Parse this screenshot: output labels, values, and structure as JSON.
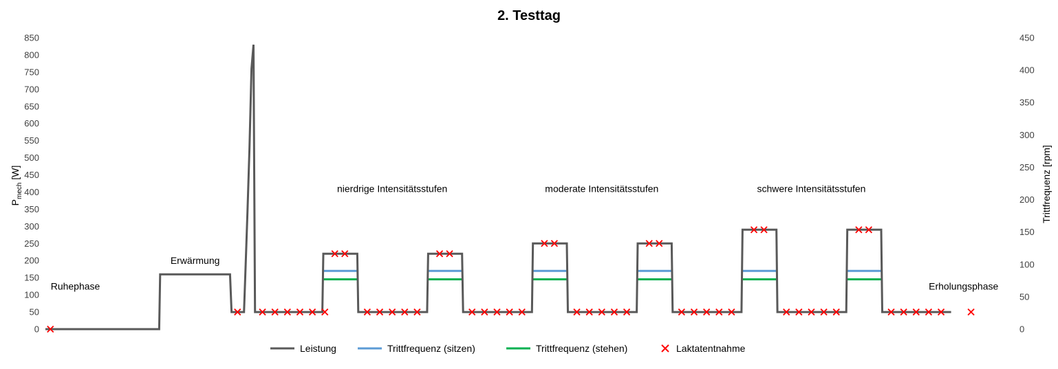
{
  "chart_data": {
    "type": "line",
    "title": "2. Testtag",
    "ylabel_main": "P",
    "ylabel_sub": "mech",
    "ylabel_unit": " [W]",
    "y2label": "Trittfrequenz [rpm]",
    "ylim": [
      0,
      850
    ],
    "y2lim": [
      0,
      450
    ],
    "yticks": [
      "0",
      "50",
      "100",
      "150",
      "200",
      "250",
      "300",
      "350",
      "400",
      "450",
      "500",
      "550",
      "600",
      "650",
      "700",
      "750",
      "800",
      "850"
    ],
    "y2ticks": [
      "0",
      "50",
      "100",
      "150",
      "200",
      "250",
      "300",
      "350",
      "400",
      "450"
    ],
    "grid": false,
    "legend_position": "bottom",
    "colors": {
      "Leistung": "#595959",
      "Trittfrequenz (sitzen)": "#5b9bd5",
      "Trittfrequenz (stehen)": "#00b050",
      "Laktatentnahme": "#ff0000"
    },
    "series": [
      {
        "name": "Leistung",
        "axis": "left",
        "points": [
          [
            0,
            0
          ],
          [
            22.8,
            0
          ],
          [
            23.0,
            160
          ],
          [
            37.0,
            160
          ],
          [
            37.3,
            50
          ],
          [
            39.8,
            50
          ],
          [
            40.1,
            175
          ],
          [
            40.5,
            345
          ],
          [
            40.9,
            530
          ],
          [
            41.3,
            760
          ],
          [
            41.7,
            830
          ],
          [
            42.0,
            50
          ],
          [
            55.5,
            50
          ],
          [
            55.7,
            220
          ],
          [
            62.5,
            220
          ],
          [
            62.7,
            50
          ],
          [
            76.5,
            50
          ],
          [
            76.7,
            220
          ],
          [
            83.5,
            220
          ],
          [
            83.7,
            50
          ],
          [
            97.5,
            50
          ],
          [
            97.7,
            250
          ],
          [
            104.5,
            250
          ],
          [
            104.7,
            50
          ],
          [
            118.5,
            50
          ],
          [
            118.7,
            250
          ],
          [
            125.5,
            250
          ],
          [
            125.7,
            50
          ],
          [
            139.5,
            50
          ],
          [
            139.7,
            290
          ],
          [
            146.5,
            290
          ],
          [
            146.7,
            50
          ],
          [
            160.5,
            50
          ],
          [
            160.7,
            290
          ],
          [
            167.5,
            290
          ],
          [
            167.7,
            50
          ],
          [
            181.5,
            50
          ]
        ]
      },
      {
        "name": "Trittfrequenz (sitzen)",
        "axis": "right",
        "segments": [
          [
            55.7,
            62.5,
            90
          ],
          [
            76.7,
            83.5,
            90
          ],
          [
            97.7,
            104.5,
            90
          ],
          [
            118.7,
            125.5,
            90
          ],
          [
            139.7,
            146.5,
            90
          ],
          [
            160.7,
            167.5,
            90
          ]
        ]
      },
      {
        "name": "Trittfrequenz (stehen)",
        "axis": "right",
        "segments": [
          [
            55.7,
            62.5,
            77
          ],
          [
            76.7,
            83.5,
            77
          ],
          [
            97.7,
            104.5,
            77
          ],
          [
            118.7,
            125.5,
            77
          ],
          [
            139.7,
            146.5,
            77
          ],
          [
            160.7,
            167.5,
            77
          ]
        ]
      },
      {
        "name": "Laktatentnahme",
        "axis": "left",
        "points": [
          [
            1,
            0
          ],
          [
            38.5,
            50
          ],
          [
            43.5,
            50
          ],
          [
            46,
            50
          ],
          [
            48.5,
            50
          ],
          [
            51,
            50
          ],
          [
            53.5,
            50
          ],
          [
            56,
            50
          ],
          [
            58,
            220
          ],
          [
            60,
            220
          ],
          [
            64.5,
            50
          ],
          [
            67,
            50
          ],
          [
            69.5,
            50
          ],
          [
            72,
            50
          ],
          [
            74.5,
            50
          ],
          [
            79,
            220
          ],
          [
            81,
            220
          ],
          [
            85.5,
            50
          ],
          [
            88,
            50
          ],
          [
            90.5,
            50
          ],
          [
            93,
            50
          ],
          [
            95.5,
            50
          ],
          [
            100,
            250
          ],
          [
            102,
            250
          ],
          [
            106.5,
            50
          ],
          [
            109,
            50
          ],
          [
            111.5,
            50
          ],
          [
            114,
            50
          ],
          [
            116.5,
            50
          ],
          [
            121,
            250
          ],
          [
            123,
            250
          ],
          [
            127.5,
            50
          ],
          [
            130,
            50
          ],
          [
            132.5,
            50
          ],
          [
            135,
            50
          ],
          [
            137.5,
            50
          ],
          [
            142,
            290
          ],
          [
            144,
            290
          ],
          [
            148.5,
            50
          ],
          [
            151,
            50
          ],
          [
            153.5,
            50
          ],
          [
            156,
            50
          ],
          [
            158.5,
            50
          ],
          [
            163,
            290
          ],
          [
            165,
            290
          ],
          [
            169.5,
            50
          ],
          [
            172,
            50
          ],
          [
            174.5,
            50
          ],
          [
            177,
            50
          ],
          [
            179.5,
            50
          ],
          [
            185.5,
            50
          ]
        ]
      }
    ],
    "xlim": [
      0,
      193
    ],
    "annotations": [
      {
        "text": "Ruhephase",
        "x": 6,
        "y": 125
      },
      {
        "text": "Erwärmung",
        "x": 30,
        "y": 200
      },
      {
        "text": "nierdrige Intensitätsstufen",
        "x": 69.5,
        "y": 410
      },
      {
        "text": "moderate Intensitätsstufen",
        "x": 111.5,
        "y": 410
      },
      {
        "text": "schwere Intensitätsstufen",
        "x": 153.5,
        "y": 410
      },
      {
        "text": "Erholungsphase",
        "x": 184,
        "y": 125
      }
    ]
  }
}
